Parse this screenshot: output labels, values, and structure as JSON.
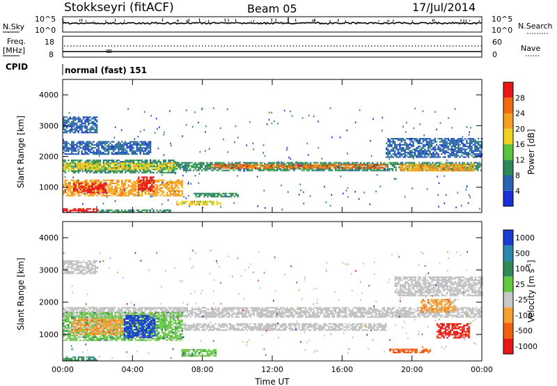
{
  "header": {
    "station": "Stokkseyri (fitACF)",
    "beam": "Beam 05",
    "date": "17/Jul/2014"
  },
  "top_panels": {
    "nsky_label": "N.Sky",
    "nsky_ticks": [
      "10^5",
      "10^0"
    ],
    "nsearch_label": "N.Search",
    "nsearch_ticks": [
      "10^5",
      "10^0"
    ],
    "freq_label": "Freq.",
    "freq_unit": "[MHz]",
    "freq_ticks": [
      "18",
      "8"
    ],
    "nave_label": "Nave",
    "nave_ticks": [
      "60",
      "0"
    ],
    "cpid_label": "CPID",
    "cpid_value": "normal (fast) 151"
  },
  "colors": {
    "power": [
      "#1a2fd8",
      "#2a64b0",
      "#2f8a5a",
      "#58c440",
      "#f0d020",
      "#f5a020",
      "#f06a10",
      "#e81818"
    ],
    "velocity": [
      "#1a3cd0",
      "#2d86b0",
      "#2f8a55",
      "#64c840",
      "#c8c8c8",
      "#f5a030",
      "#f06010",
      "#e81818"
    ],
    "ground_scatter": "#c0c0c0"
  },
  "chart_data": [
    {
      "type": "heatmap",
      "name": "power",
      "ylabel": "Slant Range [km]",
      "xlabel": "",
      "x_ticks": [
        "00:00",
        "04:00",
        "08:00",
        "12:00",
        "16:00",
        "20:00",
        "00:00"
      ],
      "xlim_hours": [
        0,
        24
      ],
      "y_ticks": [
        1000,
        2000,
        3000,
        4000
      ],
      "ylim": [
        180,
        4500
      ],
      "colorbar": {
        "label": "Power [dB]",
        "ticks": [
          4,
          8,
          12,
          16,
          20,
          24,
          28
        ],
        "range": [
          0,
          30
        ]
      },
      "bands": [
        {
          "t": [
            0,
            2.0
          ],
          "r": [
            200,
            320
          ],
          "level": 7
        },
        {
          "t": [
            2.0,
            6.2
          ],
          "r": [
            200,
            280
          ],
          "level": 2
        },
        {
          "t": [
            6.5,
            9.0
          ],
          "r": [
            430,
            560
          ],
          "level": 4
        },
        {
          "t": [
            7.5,
            10.0
          ],
          "r": [
            700,
            820
          ],
          "level": 2
        },
        {
          "t": [
            0,
            6.8
          ],
          "r": [
            750,
            1250
          ],
          "level": 5
        },
        {
          "t": [
            0.6,
            2.5
          ],
          "r": [
            850,
            1150
          ],
          "level": 7
        },
        {
          "t": [
            4.3,
            5.2
          ],
          "r": [
            900,
            1350
          ],
          "level": 7
        },
        {
          "t": [
            0,
            6.5
          ],
          "r": [
            1500,
            1900
          ],
          "level": 2
        },
        {
          "t": [
            0,
            6.5
          ],
          "r": [
            1600,
            1800
          ],
          "level": 4
        },
        {
          "t": [
            6.5,
            24
          ],
          "r": [
            1550,
            1820
          ],
          "level": 2
        },
        {
          "t": [
            8.5,
            18.5
          ],
          "r": [
            1630,
            1750
          ],
          "level": 6
        },
        {
          "t": [
            19.3,
            23.6
          ],
          "r": [
            1560,
            1760
          ],
          "level": 5
        },
        {
          "t": [
            18.5,
            24
          ],
          "r": [
            2000,
            2600
          ],
          "level": 1
        },
        {
          "t": [
            0,
            2.0
          ],
          "r": [
            2800,
            3300
          ],
          "level": 1
        },
        {
          "t": [
            0,
            5.0
          ],
          "r": [
            2100,
            2500
          ],
          "level": 1
        }
      ]
    },
    {
      "type": "heatmap",
      "name": "velocity",
      "ylabel": "Slant Range [km]",
      "xlabel": "Time UT",
      "x_ticks": [
        "00:00",
        "04:00",
        "08:00",
        "12:00",
        "16:00",
        "20:00",
        "00:00"
      ],
      "xlim_hours": [
        0,
        24
      ],
      "y_ticks": [
        1000,
        2000,
        3000,
        4000
      ],
      "ylim": [
        180,
        4500
      ],
      "colorbar": {
        "label": "Velocity [m s^-1]",
        "ticks": [
          1000,
          500,
          100,
          25,
          -25,
          -100,
          -500,
          -1000
        ]
      },
      "bands": [
        {
          "t": [
            0,
            24
          ],
          "r": [
            1550,
            1850
          ],
          "level": "gs"
        },
        {
          "t": [
            0,
            2.0
          ],
          "r": [
            2900,
            3300
          ],
          "level": "gs"
        },
        {
          "t": [
            6.5,
            18.5
          ],
          "r": [
            1150,
            1350
          ],
          "level": "gs"
        },
        {
          "t": [
            0,
            6.8
          ],
          "r": [
            800,
            1700
          ],
          "level": 3
        },
        {
          "t": [
            0.5,
            3.5
          ],
          "r": [
            1000,
            1500
          ],
          "level": 5
        },
        {
          "t": [
            3.5,
            5.3
          ],
          "r": [
            900,
            1600
          ],
          "level": 0
        },
        {
          "t": [
            0,
            2.0
          ],
          "r": [
            200,
            320
          ],
          "level": 2
        },
        {
          "t": [
            6.8,
            8.8
          ],
          "r": [
            350,
            550
          ],
          "level": 3
        },
        {
          "t": [
            18.7,
            21.0
          ],
          "r": [
            450,
            560
          ],
          "level": 6
        },
        {
          "t": [
            21.4,
            23.3
          ],
          "r": [
            900,
            1350
          ],
          "level": 7
        },
        {
          "t": [
            20.5,
            22.5
          ],
          "r": [
            1700,
            2100
          ],
          "level": 5
        },
        {
          "t": [
            19.0,
            24
          ],
          "r": [
            2200,
            2800
          ],
          "level": "gs"
        }
      ]
    }
  ]
}
